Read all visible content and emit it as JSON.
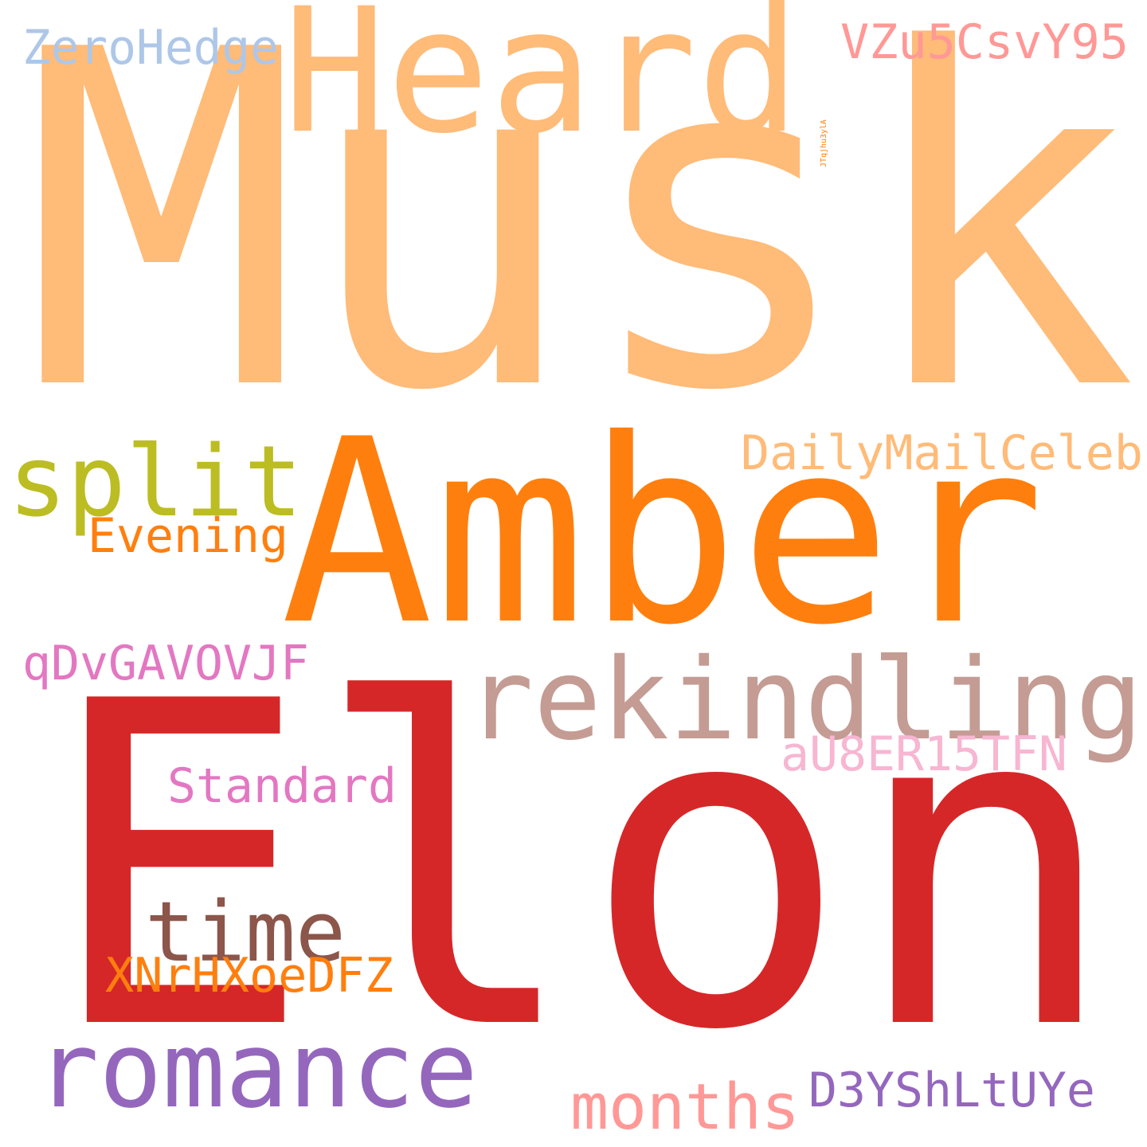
{
  "words": [
    {
      "id": "elon",
      "text": "Elon",
      "color": "#d62728"
    },
    {
      "id": "musk",
      "text": "Musk",
      "color": "#ffbb78"
    },
    {
      "id": "amber",
      "text": "Amber",
      "color": "#ff7f0e"
    },
    {
      "id": "heard",
      "text": "Heard",
      "color": "#ffbb78"
    },
    {
      "id": "rekindling",
      "text": "rekindling",
      "color": "#c49c94"
    },
    {
      "id": "romance",
      "text": "romance",
      "color": "#9467bd"
    },
    {
      "id": "split",
      "text": "split",
      "color": "#bcbd22"
    },
    {
      "id": "time",
      "text": "time",
      "color": "#8c564b"
    },
    {
      "id": "months",
      "text": "months",
      "color": "#ff9896"
    },
    {
      "id": "dailymailceleb",
      "text": "DailyMailCeleb",
      "color": "#ffbb78"
    },
    {
      "id": "jtqjhu",
      "text": "JTqjhu3ylA",
      "color": "#ff7f0e"
    },
    {
      "id": "vzu5",
      "text": "VZu5CsvY95",
      "color": "#ff9896"
    },
    {
      "id": "zerohedge",
      "text": "ZeroHedge",
      "color": "#aec7e8"
    },
    {
      "id": "evening",
      "text": "Evening",
      "color": "#ff7f0e"
    },
    {
      "id": "qdvgav",
      "text": "qDvGAVOVJF",
      "color": "#e377c2"
    },
    {
      "id": "standard",
      "text": "Standard",
      "color": "#e377c2"
    },
    {
      "id": "au8er",
      "text": "aU8ER15TFN",
      "color": "#f7b6d2"
    },
    {
      "id": "xnrhx",
      "text": "XNrHXoeDFZ",
      "color": "#ff7f0e"
    },
    {
      "id": "d3ysh",
      "text": "D3YShLtUYe",
      "color": "#9467bd"
    }
  ]
}
